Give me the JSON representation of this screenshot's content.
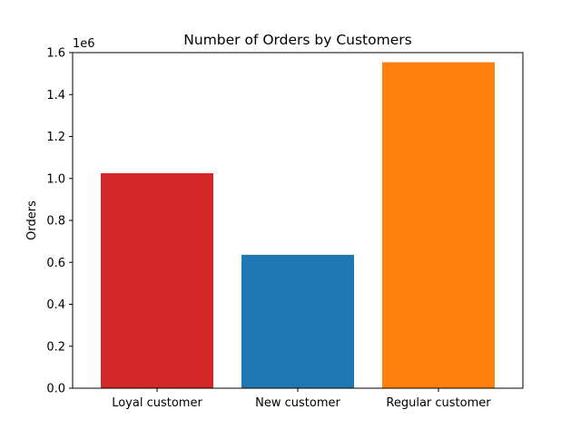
{
  "chart_data": {
    "type": "bar",
    "title": "Number of Orders by Customers",
    "xlabel": "",
    "ylabel": "Orders",
    "y_offset_text": "1e6",
    "categories": [
      "Loyal customer",
      "New customer",
      "Regular customer"
    ],
    "values": [
      1025000,
      636000,
      1554000
    ],
    "colors": [
      "#d62728",
      "#1f77b4",
      "#ff7f0e"
    ],
    "ylim": [
      0,
      1600000
    ],
    "yticks": [
      0,
      200000,
      400000,
      600000,
      800000,
      1000000,
      1200000,
      1400000,
      1600000
    ],
    "ytick_labels": [
      "0.0",
      "0.2",
      "0.4",
      "0.6",
      "0.8",
      "1.0",
      "1.2",
      "1.4",
      "1.6"
    ],
    "grid": false,
    "legend": "none"
  }
}
